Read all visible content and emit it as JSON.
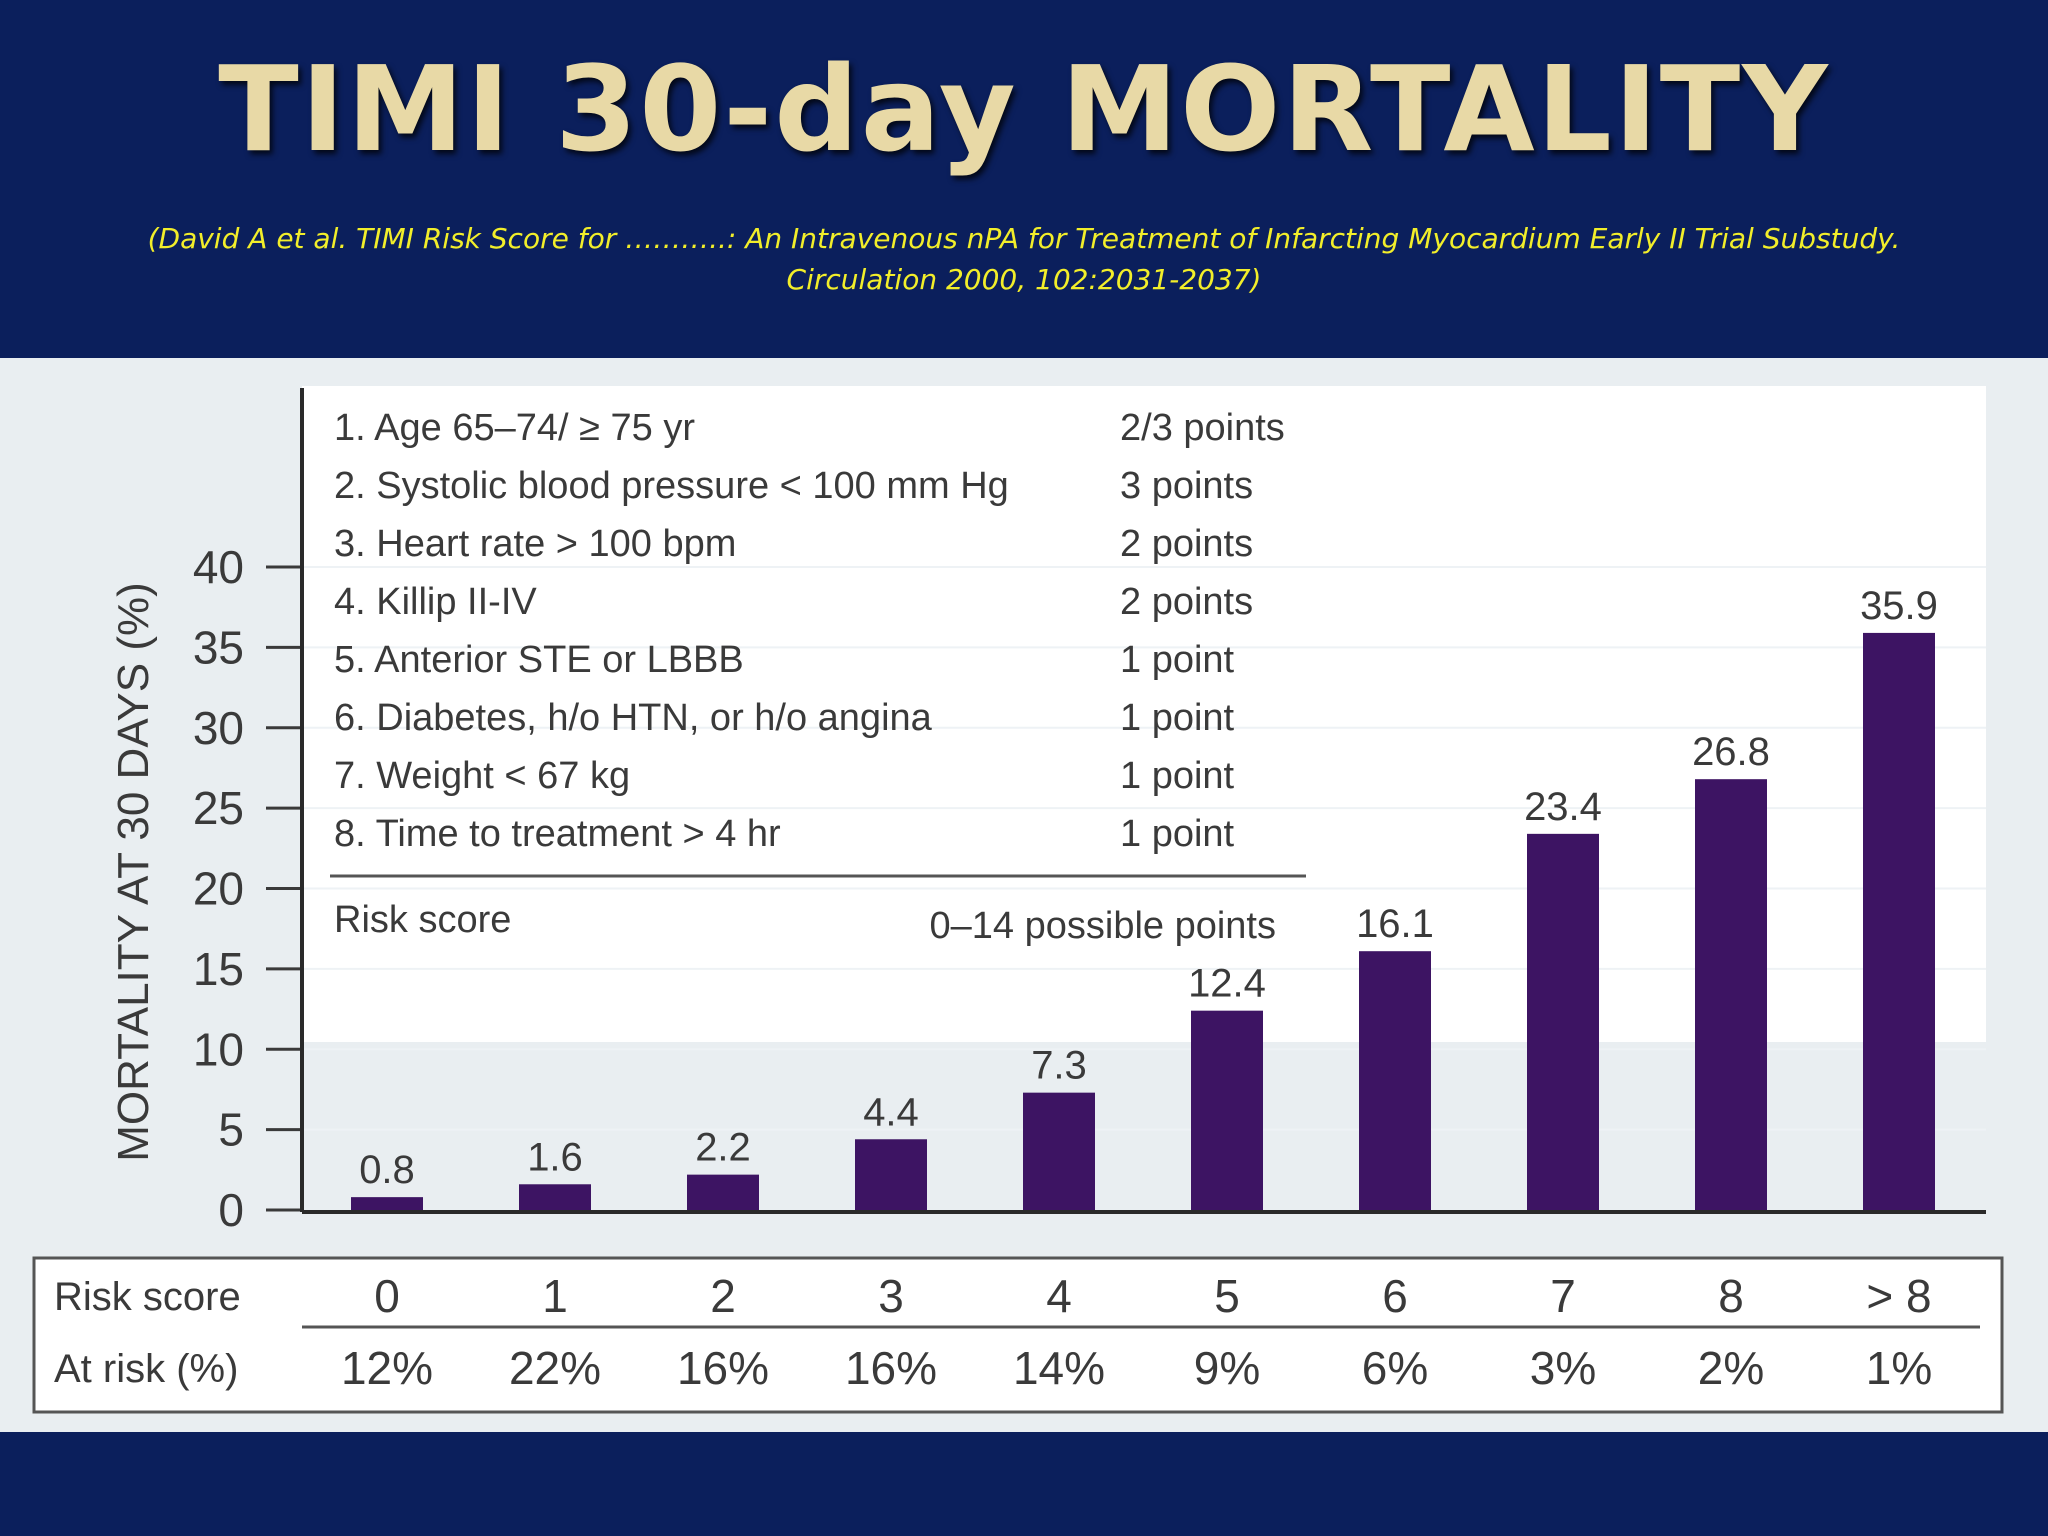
{
  "slide": {
    "title": "TIMI 30-day MORTALITY",
    "citation_line1": "(David A et al. TIMI Risk Score for ………..: An Intravenous nPA for Treatment of Infarcting Myocardium Early II Trial Substudy.",
    "citation_line2": "Circulation 2000, 102:2031-2037)"
  },
  "risk_factors": [
    {
      "label": "1. Age 65–74/ ≥ 75 yr",
      "points": "2/3 points"
    },
    {
      "label": "2. Systolic blood pressure < 100 mm Hg",
      "points": "3 points"
    },
    {
      "label": "3. Heart rate > 100 bpm",
      "points": "2 points"
    },
    {
      "label": "4. Killip II-IV",
      "points": "2 points"
    },
    {
      "label": "5. Anterior STE or LBBB",
      "points": "1 point"
    },
    {
      "label": "6. Diabetes, h/o HTN, or h/o angina",
      "points": "1 point"
    },
    {
      "label": "7. Weight < 67 kg",
      "points": "1 point"
    },
    {
      "label": "8. Time to treatment > 4 hr",
      "points": "1 point"
    }
  ],
  "risk_score_caption": "Risk score",
  "possible_points_caption": "0–14 possible points",
  "chart_data": {
    "type": "bar",
    "ylabel": "MORTALITY AT 30 DAYS (%)",
    "ylim": [
      0,
      40
    ],
    "yticks": [
      0,
      5,
      10,
      15,
      20,
      25,
      30,
      35,
      40
    ],
    "categories": [
      "0",
      "1",
      "2",
      "3",
      "4",
      "5",
      "6",
      "7",
      "8",
      "> 8"
    ],
    "values": [
      0.8,
      1.6,
      2.2,
      4.4,
      7.3,
      12.4,
      16.1,
      23.4,
      26.8,
      35.9
    ],
    "value_labels": [
      "0.8",
      "1.6",
      "2.2",
      "4.4",
      "7.3",
      "12.4",
      "16.1",
      "23.4",
      "26.8",
      "35.9"
    ],
    "bar_color": "#3d1463",
    "grid": true
  },
  "score_table": {
    "row1_label": "Risk score",
    "row2_label": "At risk (%)",
    "scores": [
      "0",
      "1",
      "2",
      "3",
      "4",
      "5",
      "6",
      "7",
      "8",
      "> 8"
    ],
    "at_risk": [
      "12%",
      "22%",
      "16%",
      "16%",
      "14%",
      "9%",
      "6%",
      "3%",
      "2%",
      "1%"
    ]
  }
}
